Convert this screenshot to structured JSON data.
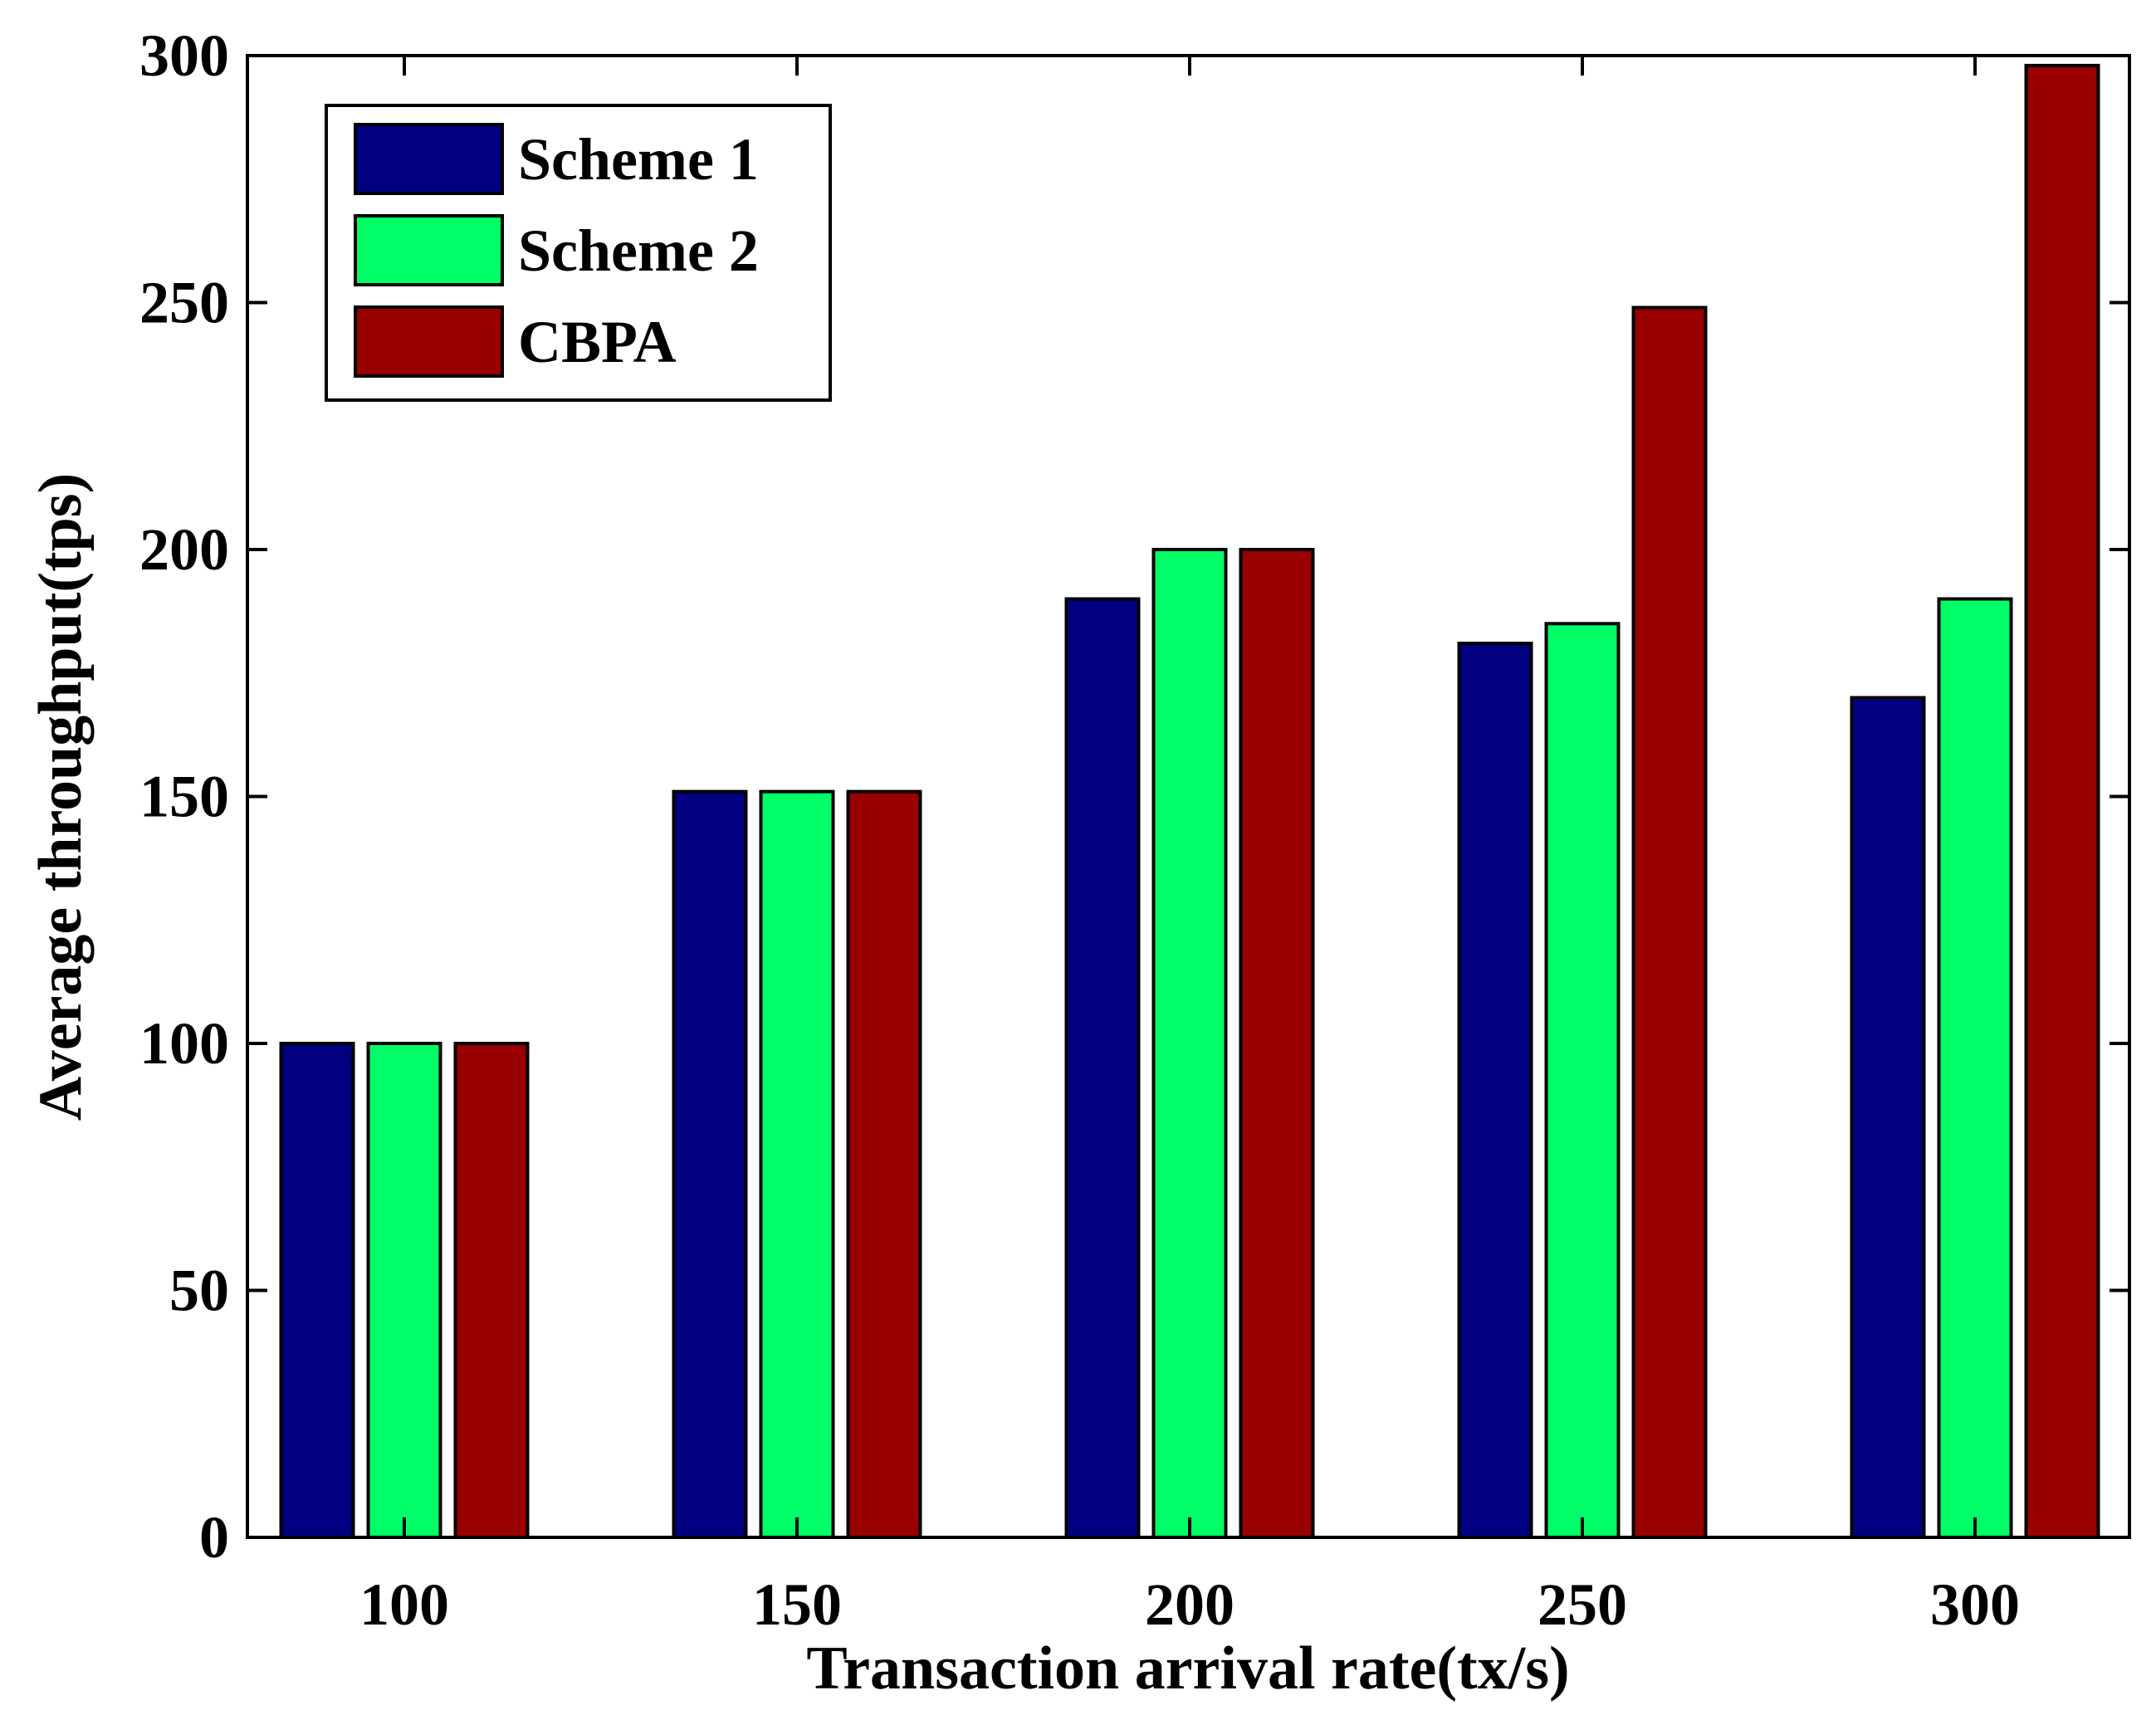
{
  "chart_data": {
    "type": "bar",
    "title": "",
    "xlabel": "Transaction arrival rate(tx/s)",
    "ylabel": "Average throughput(tps)",
    "categories": [
      "100",
      "150",
      "200",
      "250",
      "300"
    ],
    "ylim": [
      0,
      300
    ],
    "yticks": [
      "0",
      "50",
      "100",
      "150",
      "200",
      "250",
      "300"
    ],
    "grid": false,
    "legend_position": "top-left",
    "series": [
      {
        "name": "Scheme 1",
        "color": "#000080",
        "values": [
          100,
          151,
          190,
          181,
          170
        ]
      },
      {
        "name": "Scheme 2",
        "color": "#00FF66",
        "values": [
          100,
          151,
          200,
          185,
          190
        ]
      },
      {
        "name": "CBPA",
        "color": "#990000",
        "values": [
          100,
          151,
          200,
          249,
          298
        ]
      }
    ]
  }
}
